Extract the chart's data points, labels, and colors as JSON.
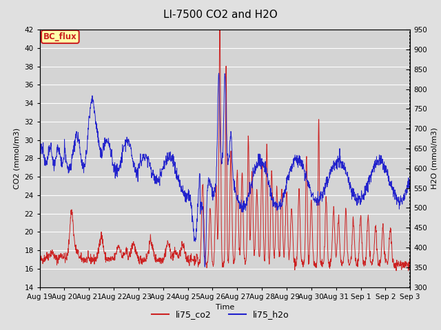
{
  "title": "LI-7500 CO2 and H2O",
  "ylabel_left": "CO2 (mmol/m3)",
  "ylabel_right": "H2O (mmol/m3)",
  "xlabel": "Time",
  "ylim_left": [
    14,
    42
  ],
  "ylim_right": [
    300,
    950
  ],
  "co2_color": "#cc2222",
  "h2o_color": "#2222cc",
  "fig_bg_color": "#e0e0e0",
  "plot_bg_color": "#d4d4d4",
  "annotation_text": "BC_flux",
  "annotation_bg": "#ffffaa",
  "annotation_border": "#cc2222",
  "x_tick_labels": [
    "Aug 19",
    "Aug 20",
    "Aug 21",
    "Aug 22",
    "Aug 23",
    "Aug 24",
    "Aug 25",
    "Aug 26",
    "Aug 27",
    "Aug 28",
    "Aug 29",
    "Aug 30",
    "Aug 31",
    "Sep 1",
    "Sep 2",
    "Sep 3"
  ],
  "legend_labels": [
    "li75_co2",
    "li75_h2o"
  ],
  "title_fontsize": 11,
  "axis_fontsize": 8,
  "tick_fontsize": 7.5
}
